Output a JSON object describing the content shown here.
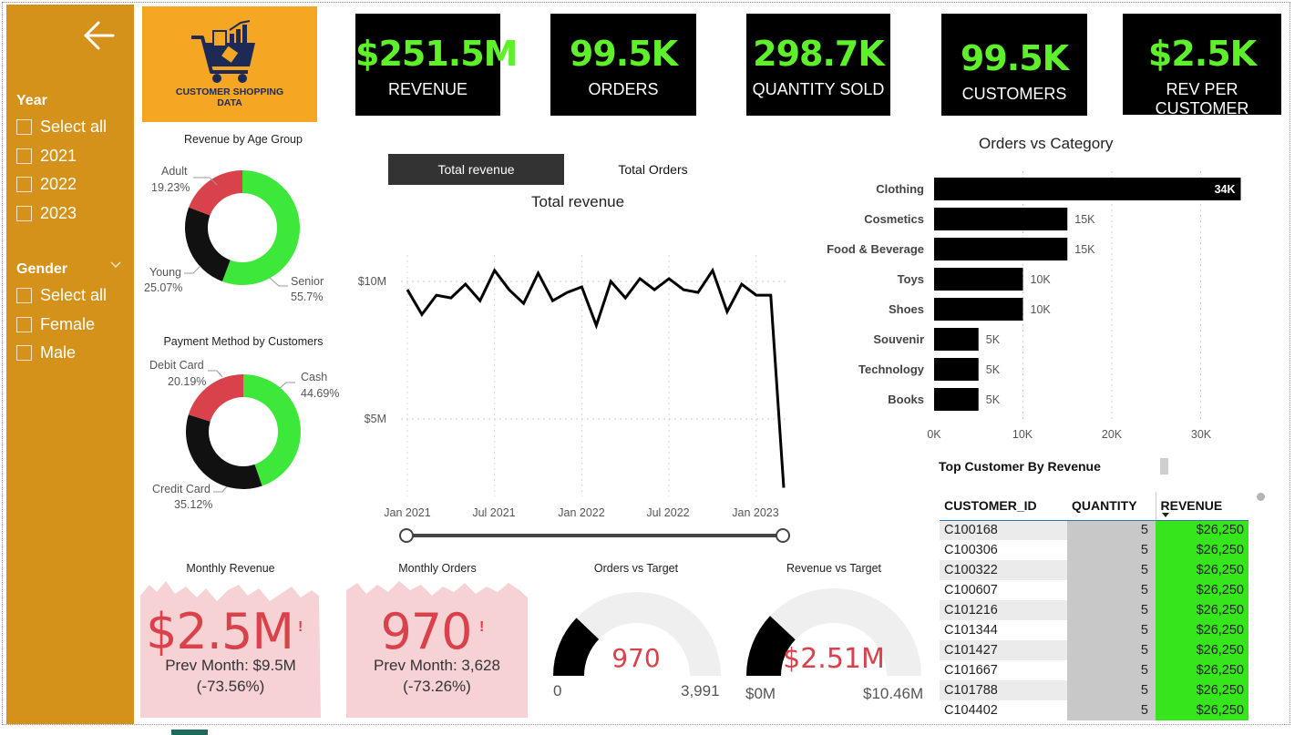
{
  "sidebar": {
    "year_title": "Year",
    "year_items": [
      "Select all",
      "2021",
      "2022",
      "2023"
    ],
    "gender_title": "Gender",
    "gender_items": [
      "Select all",
      "Female",
      "Male"
    ]
  },
  "logo": {
    "line1": "CUSTOMER SHOPPING",
    "line2": "DATA",
    "icon": "shopping-cart-icon"
  },
  "kpis": [
    {
      "value": "$251.5M",
      "label": "REVENUE"
    },
    {
      "value": "99.5K",
      "label": "ORDERS"
    },
    {
      "value": "298.7K",
      "label": "QUANTITY SOLD"
    },
    {
      "value": "99.5K",
      "label": "CUSTOMERS"
    },
    {
      "value": "$2.5K",
      "label": "REV PER CUSTOMER"
    }
  ],
  "age_group": {
    "title": "Revenue by Age Group",
    "labels": [
      {
        "name": "Adult",
        "pct": "19.23%"
      },
      {
        "name": "Young",
        "pct": "25.07%"
      },
      {
        "name": "Senior",
        "pct": "55.7%"
      }
    ]
  },
  "payment": {
    "title": "Payment Method by Customers",
    "labels": [
      {
        "name": "Debit Card",
        "pct": "20.19%"
      },
      {
        "name": "Cash",
        "pct": "44.69%"
      },
      {
        "name": "Credit Card",
        "pct": "35.12%"
      }
    ]
  },
  "revenue_chart": {
    "tab_active": "Total revenue",
    "tab_inactive": "Total Orders",
    "title": "Total revenue",
    "y_ticks": [
      "$10M",
      "$5M"
    ],
    "x_ticks": [
      "Jan 2021",
      "Jul 2021",
      "Jan 2022",
      "Jul 2022",
      "Jan 2023"
    ]
  },
  "category_chart": {
    "title": "Orders vs Category",
    "x_ticks": [
      "0K",
      "10K",
      "20K",
      "30K"
    ]
  },
  "monthly_revenue": {
    "title": "Monthly Revenue",
    "value": "$2.5M",
    "warn": "!",
    "prev": "Prev Month: $9.5M",
    "change": "(-73.56%)"
  },
  "monthly_orders": {
    "title": "Monthly Orders",
    "value": "970",
    "warn": "!",
    "prev": "Prev Month: 3,628",
    "change": "(-73.26%)"
  },
  "orders_target": {
    "title": "Orders vs Target",
    "value": "970",
    "min": "0",
    "max": "3,991"
  },
  "revenue_target": {
    "title": "Revenue vs Target",
    "value": "$2.51M",
    "min": "$0M",
    "max": "$10.46M"
  },
  "top_customers": {
    "title": "Top Customer By Revenue",
    "headers": [
      "CUSTOMER_ID",
      "QUANTITY",
      "REVENUE"
    ],
    "rows": [
      [
        "C100168",
        "5",
        "$26,250"
      ],
      [
        "C100306",
        "5",
        "$26,250"
      ],
      [
        "C100322",
        "5",
        "$26,250"
      ],
      [
        "C100607",
        "5",
        "$26,250"
      ],
      [
        "C101216",
        "5",
        "$26,250"
      ],
      [
        "C101344",
        "5",
        "$26,250"
      ],
      [
        "C101427",
        "5",
        "$26,250"
      ],
      [
        "C101667",
        "5",
        "$26,250"
      ],
      [
        "C101788",
        "5",
        "$26,250"
      ],
      [
        "C104402",
        "5",
        "$26,250"
      ]
    ]
  },
  "colors": {
    "accent_green": "#5ef02a",
    "donut_green": "#3de83a",
    "donut_red": "#d9414b",
    "sidebar": "#d4921a",
    "logo_bg": "#f5a623",
    "alert_red": "#d9414b"
  },
  "chart_data": [
    {
      "type": "pie",
      "title": "Revenue by Age Group",
      "categories": [
        "Senior",
        "Young",
        "Adult"
      ],
      "values": [
        55.7,
        25.07,
        19.23
      ],
      "colors": [
        "#3de83a",
        "#111111",
        "#d9414b"
      ]
    },
    {
      "type": "pie",
      "title": "Payment Method by Customers",
      "categories": [
        "Cash",
        "Credit Card",
        "Debit Card"
      ],
      "values": [
        44.69,
        35.12,
        20.19
      ],
      "colors": [
        "#3de83a",
        "#111111",
        "#d9414b"
      ]
    },
    {
      "type": "line",
      "title": "Total revenue",
      "x": [
        "Jan 2021",
        "Feb 2021",
        "Mar 2021",
        "Apr 2021",
        "May 2021",
        "Jun 2021",
        "Jul 2021",
        "Aug 2021",
        "Sep 2021",
        "Oct 2021",
        "Nov 2021",
        "Dec 2021",
        "Jan 2022",
        "Feb 2022",
        "Mar 2022",
        "Apr 2022",
        "May 2022",
        "Jun 2022",
        "Jul 2022",
        "Aug 2022",
        "Sep 2022",
        "Oct 2022",
        "Nov 2022",
        "Dec 2022",
        "Jan 2023",
        "Feb 2023",
        "Mar 2023"
      ],
      "values": [
        9.7,
        8.8,
        9.5,
        9.4,
        9.9,
        9.3,
        10.4,
        9.7,
        9.2,
        10.3,
        9.3,
        9.6,
        9.8,
        8.4,
        10.0,
        9.4,
        10.1,
        9.7,
        10.1,
        9.7,
        9.6,
        10.4,
        8.9,
        9.9,
        9.5,
        9.5,
        2.5
      ],
      "yticks": [
        5,
        10
      ],
      "ylim": [
        2,
        12
      ],
      "yunit": "$M",
      "grid": true
    },
    {
      "type": "bar",
      "orientation": "horizontal",
      "title": "Orders vs Category",
      "categories": [
        "Clothing",
        "Cosmetics",
        "Food & Beverage",
        "Toys",
        "Shoes",
        "Souvenir",
        "Technology",
        "Books"
      ],
      "values": [
        34,
        15,
        15,
        10,
        10,
        5,
        5,
        5
      ],
      "value_labels": [
        "34K",
        "15K",
        "15K",
        "10K",
        "10K",
        "5K",
        "5K",
        "5K"
      ],
      "xlim": [
        0,
        35
      ],
      "xunit": "K",
      "grid": true
    },
    {
      "type": "gauge",
      "title": "Orders vs Target",
      "value": 970,
      "min": 0,
      "max": 3991
    },
    {
      "type": "gauge",
      "title": "Revenue vs Target",
      "value": 2.51,
      "min": 0,
      "max": 10.46,
      "unit": "$M"
    }
  ]
}
